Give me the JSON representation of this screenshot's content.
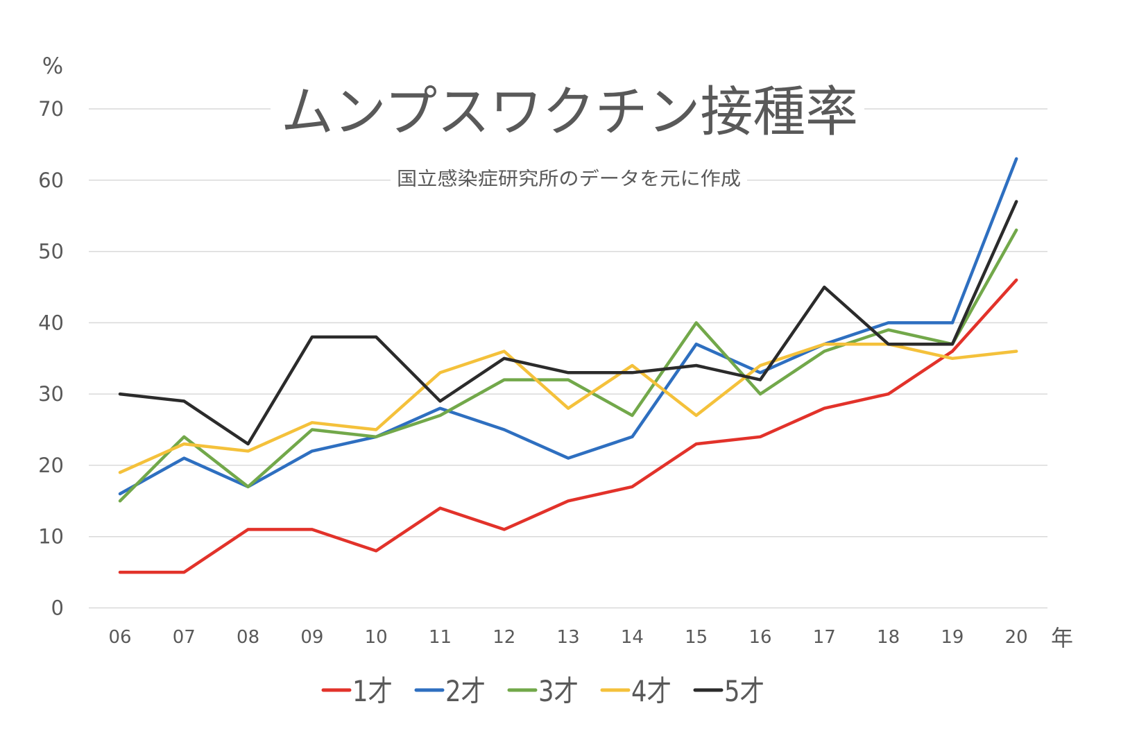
{
  "chart_data": {
    "type": "line",
    "title": "ムンプスワクチン接種率",
    "subtitle": "国立感染症研究所のデータを元に作成",
    "ylabel": "%",
    "xlabel": "年",
    "ylim": [
      0,
      70
    ],
    "yticks": [
      "0",
      "10",
      "20",
      "30",
      "40",
      "50",
      "60",
      "70"
    ],
    "grid": true,
    "legend_position": "bottom",
    "categories": [
      "06",
      "07",
      "08",
      "09",
      "10",
      "11",
      "12",
      "13",
      "14",
      "15",
      "16",
      "17",
      "18",
      "19",
      "20"
    ],
    "series": [
      {
        "name": "1才",
        "color": "#e2322a",
        "values": [
          5,
          5,
          11,
          11,
          8,
          14,
          11,
          15,
          17,
          23,
          24,
          28,
          30,
          36,
          46
        ]
      },
      {
        "name": "2才",
        "color": "#2e6fc0",
        "values": [
          16,
          21,
          17,
          22,
          24,
          28,
          25,
          21,
          24,
          37,
          33,
          37,
          40,
          40,
          63
        ]
      },
      {
        "name": "3才",
        "color": "#72a84a",
        "values": [
          15,
          24,
          17,
          25,
          24,
          27,
          32,
          32,
          27,
          40,
          30,
          36,
          39,
          37,
          53
        ]
      },
      {
        "name": "4才",
        "color": "#f4c13b",
        "values": [
          19,
          23,
          22,
          26,
          25,
          33,
          36,
          28,
          34,
          27,
          34,
          37,
          37,
          35,
          36
        ]
      },
      {
        "name": "5才",
        "color": "#2b2b2b",
        "values": [
          30,
          29,
          23,
          38,
          38,
          29,
          35,
          33,
          33,
          34,
          32,
          45,
          37,
          37,
          57
        ]
      }
    ]
  }
}
